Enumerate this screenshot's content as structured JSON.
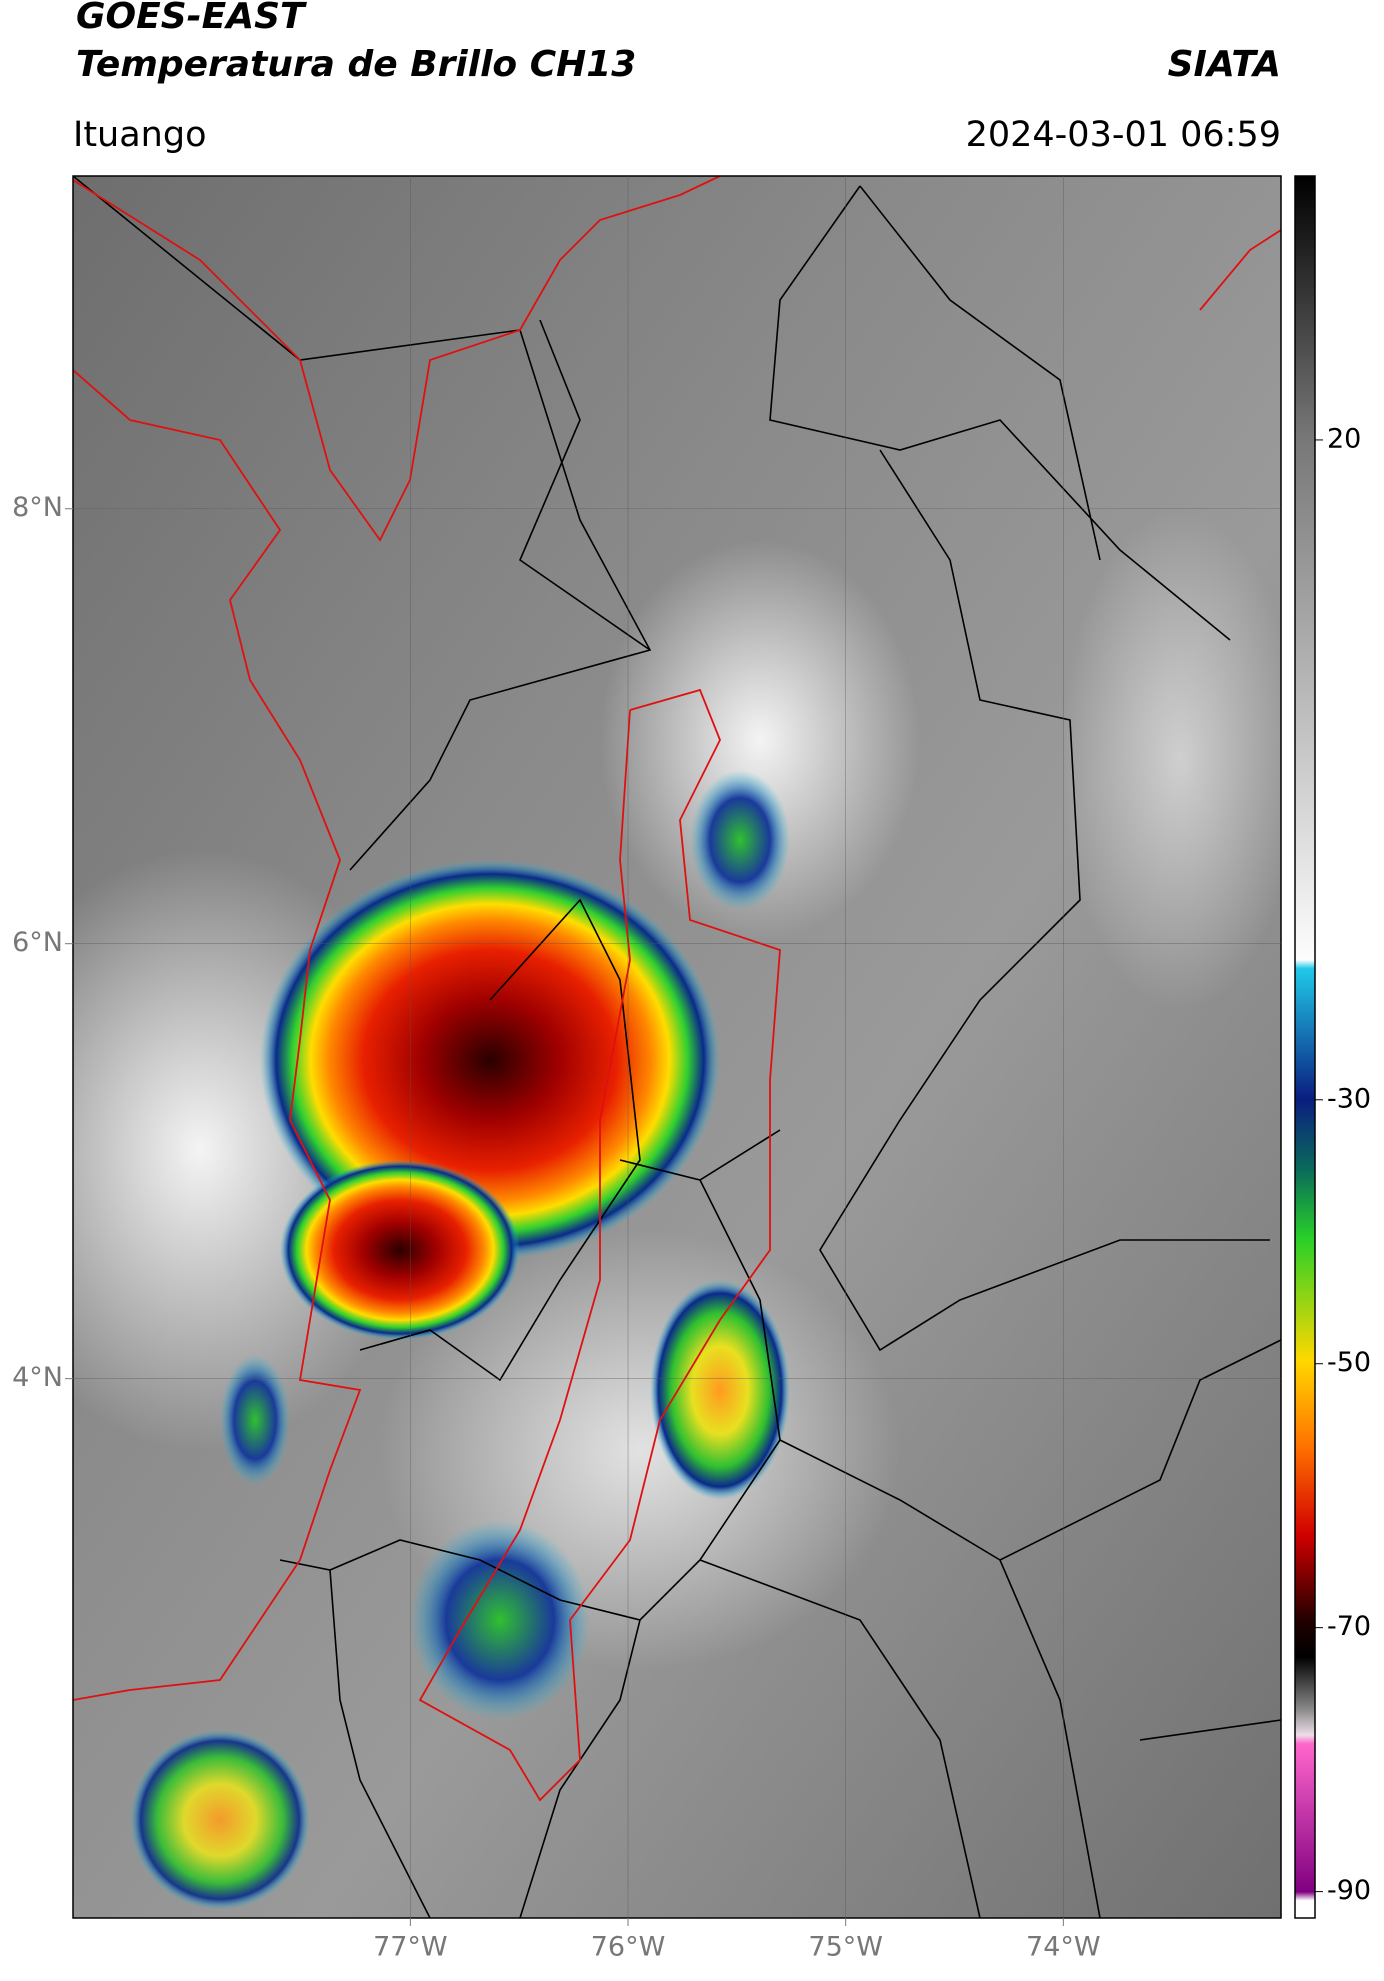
{
  "chart_data": {
    "type": "map",
    "title_lines": [
      "GOES-EAST",
      "Temperatura de Brillo CH13"
    ],
    "source": "SIATA",
    "location": "Ituango",
    "datetime": "2024-03-01 06:59",
    "xlim": [
      -78.55,
      -73.0
    ],
    "ylim": [
      1.52,
      9.53
    ],
    "xticks": [
      {
        "value": -77,
        "label": "77°W"
      },
      {
        "value": -76,
        "label": "76°W"
      },
      {
        "value": -75,
        "label": "75°W"
      },
      {
        "value": -74,
        "label": "74°W"
      }
    ],
    "yticks": [
      {
        "value": 8,
        "label": "8°N"
      },
      {
        "value": 6,
        "label": "6°N"
      },
      {
        "value": 4,
        "label": "4°N"
      }
    ],
    "clim": [
      -92,
      40
    ],
    "cticks": [
      20,
      -30,
      -50,
      -70,
      -90
    ],
    "grid": true
  }
}
